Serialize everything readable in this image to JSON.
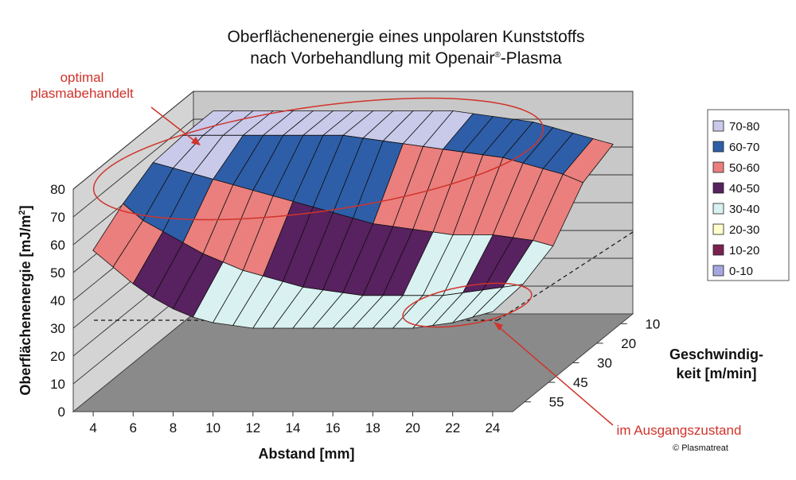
{
  "chart_data": {
    "type": "surface",
    "title": [
      "Oberflächenenergie eines unpolaren Kunststoffs",
      "nach Vorbehandlung mit Openair",
      "®",
      "-Plasma"
    ],
    "xlabel": "Abstand [mm]",
    "ylabel": "Oberflächenenergie [mJ/m",
    "ylabel_sup": "2",
    "ylabel_close": "]",
    "zlabel": [
      "Geschwindig-",
      "keit [m/min]"
    ],
    "x_ticks": [
      "4",
      "6",
      "8",
      "10",
      "12",
      "14",
      "16",
      "18",
      "20",
      "22",
      "24"
    ],
    "y_ticks": [
      "0",
      "10",
      "20",
      "30",
      "40",
      "50",
      "60",
      "70",
      "80"
    ],
    "z_ticks": [
      "10",
      "20",
      "30",
      "45",
      "55"
    ],
    "ylim": [
      0,
      80
    ],
    "legend": [
      {
        "label": "70-80",
        "color": "#c9c9ea"
      },
      {
        "label": "60-70",
        "color": "#2e5ea8"
      },
      {
        "label": "50-60",
        "color": "#ea7f7d"
      },
      {
        "label": "40-50",
        "color": "#58215f"
      },
      {
        "label": "30-40",
        "color": "#d9f1f1"
      },
      {
        "label": "20-30",
        "color": "#ffffce"
      },
      {
        "label": "10-20",
        "color": "#7a2150"
      },
      {
        "label": "0-10",
        "color": "#a6a6e0"
      }
    ],
    "surface_depth_rows": [
      [
        73,
        73,
        73,
        73,
        73,
        73,
        73,
        73,
        73,
        73,
        73,
        73,
        73,
        72,
        71,
        70,
        69,
        67,
        65,
        63,
        61
      ],
      [
        73,
        73,
        73,
        73,
        73,
        73,
        73,
        73,
        73,
        72,
        71,
        70,
        69,
        68,
        67,
        66,
        65,
        63,
        61,
        59,
        56
      ],
      [
        72,
        70,
        68,
        66,
        64,
        62,
        60,
        58,
        56,
        54,
        52,
        50,
        49,
        48,
        47,
        46,
        46,
        46,
        45,
        44,
        42
      ],
      [
        66,
        60,
        56,
        52,
        48,
        45,
        42,
        40,
        38,
        36,
        35,
        34,
        33,
        33,
        33,
        33,
        33,
        34,
        35,
        36,
        37
      ],
      [
        58,
        52,
        46,
        41,
        37,
        34,
        32,
        31,
        30,
        30,
        30,
        30,
        30,
        30,
        30,
        30,
        30,
        31,
        32,
        34,
        36
      ]
    ],
    "annotations": {
      "top": [
        "optimal",
        "plasmabehandelt"
      ],
      "bottom": "im Ausgangszustand"
    },
    "copyright": "© Plasmatreat"
  }
}
